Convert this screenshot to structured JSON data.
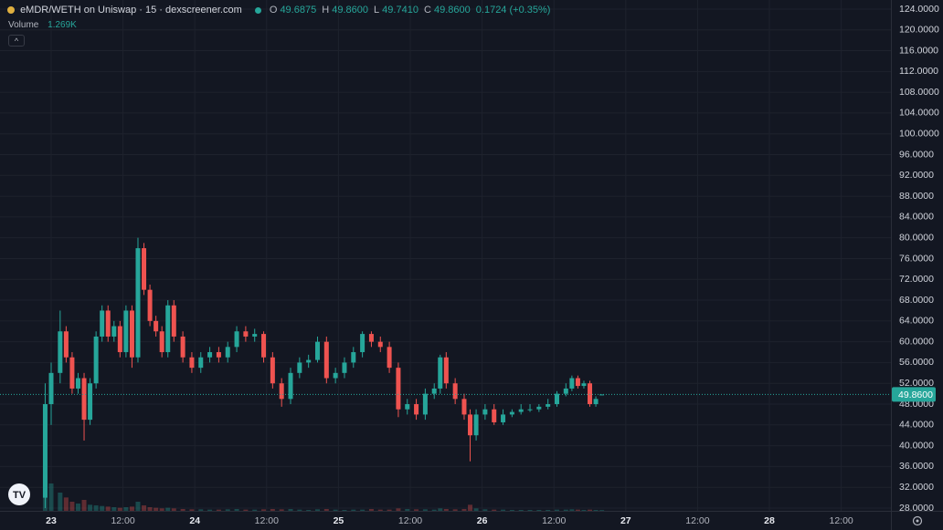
{
  "chart_data": {
    "type": "candlestick",
    "title": "eMDR/WETH on Uniswap · 15 · dexscreener.com",
    "ohlc_labels": [
      "O",
      "H",
      "L",
      "C"
    ],
    "ohlc_values": [
      "49.6875",
      "49.8600",
      "49.7410",
      "49.8600"
    ],
    "change": "0.1724 (+0.35%)",
    "up_color": "#26a69a",
    "down_color": "#ef5350",
    "grid": true,
    "xlim": [
      -8.55,
      140.3
    ],
    "xticks": [
      {
        "value": 0,
        "label": "23"
      },
      {
        "value": 12,
        "label": "12:00"
      },
      {
        "value": 24,
        "label": "24"
      },
      {
        "value": 36,
        "label": "12:00"
      },
      {
        "value": 48,
        "label": "25"
      },
      {
        "value": 60,
        "label": "12:00"
      },
      {
        "value": 72,
        "label": "26"
      },
      {
        "value": 84,
        "label": "12:00"
      },
      {
        "value": 96,
        "label": "27"
      },
      {
        "value": 108,
        "label": "12:00"
      },
      {
        "value": 120,
        "label": "28"
      },
      {
        "value": 132,
        "label": "12:00"
      }
    ],
    "ylim": [
      27.47,
      125.75
    ],
    "yticks": [
      {
        "value": 28,
        "label": "28.0000"
      },
      {
        "value": 32,
        "label": "32.0000"
      },
      {
        "value": 36,
        "label": "36.0000"
      },
      {
        "value": 40,
        "label": "40.0000"
      },
      {
        "value": 44,
        "label": "44.0000"
      },
      {
        "value": 48,
        "label": "48.0000"
      },
      {
        "value": 52,
        "label": "52.0000"
      },
      {
        "value": 56,
        "label": "56.0000"
      },
      {
        "value": 60,
        "label": "60.0000"
      },
      {
        "value": 64,
        "label": "64.0000"
      },
      {
        "value": 68,
        "label": "68.0000"
      },
      {
        "value": 72,
        "label": "72.0000"
      },
      {
        "value": 76,
        "label": "76.0000"
      },
      {
        "value": 80,
        "label": "80.0000"
      },
      {
        "value": 84,
        "label": "84.0000"
      },
      {
        "value": 88,
        "label": "88.0000"
      },
      {
        "value": 92,
        "label": "92.0000"
      },
      {
        "value": 96,
        "label": "96.0000"
      },
      {
        "value": 100,
        "label": "100.0000"
      },
      {
        "value": 104,
        "label": "104.0000"
      },
      {
        "value": 108,
        "label": "108.0000"
      },
      {
        "value": 112,
        "label": "112.0000"
      },
      {
        "value": 116,
        "label": "116.0000"
      },
      {
        "value": 120,
        "label": "120.0000"
      },
      {
        "value": 124,
        "label": "124.0000"
      }
    ],
    "last_price": {
      "value": 49.86,
      "label": "49.8600"
    },
    "x": [
      -1,
      0,
      1.5,
      2.5,
      3.5,
      4.5,
      5.5,
      6.5,
      7.5,
      8.5,
      9.5,
      10.5,
      11.5,
      12.5,
      13.5,
      14.5,
      15.5,
      16.5,
      17.5,
      18.5,
      19.5,
      20.5,
      22,
      23.5,
      25,
      26.5,
      28,
      29.5,
      31,
      32.5,
      34,
      35.5,
      37,
      38.5,
      40,
      41.5,
      43,
      44.5,
      46,
      47.5,
      49,
      50.5,
      52,
      53.5,
      55,
      56.5,
      58,
      59.5,
      61,
      62.5,
      64,
      65,
      66,
      67.5,
      69,
      70,
      71,
      72.5,
      74,
      75.5,
      77,
      78.5,
      80,
      81.5,
      83,
      84.5,
      86,
      87,
      88,
      89,
      90,
      91,
      92
    ],
    "open": [
      30,
      48,
      54,
      62,
      57,
      51,
      53,
      45,
      52,
      61,
      66,
      61,
      63,
      58,
      66,
      57,
      78,
      70,
      64,
      62,
      58,
      67,
      61,
      57,
      55,
      57,
      58,
      57,
      59,
      62,
      61,
      61.5,
      57,
      52,
      49,
      54,
      56,
      56.5,
      60,
      53,
      54,
      56,
      58,
      61.5,
      60,
      59,
      55,
      47,
      48,
      46,
      50,
      51,
      57,
      52,
      49,
      46,
      42,
      46,
      47,
      44.5,
      46,
      46.5,
      47,
      47,
      47.5,
      48,
      50,
      51,
      53,
      51.5,
      52,
      48,
      49.6875
    ],
    "high": [
      52,
      56,
      66,
      63,
      58,
      54,
      54,
      53,
      62,
      67,
      67,
      64,
      64,
      67,
      67,
      80,
      79,
      71,
      65,
      63,
      68,
      68,
      62,
      58,
      58,
      59,
      59,
      60,
      63,
      63,
      62.5,
      62,
      58,
      53,
      55,
      57,
      57.5,
      61,
      61,
      55,
      57,
      59,
      62,
      62,
      61,
      60,
      56,
      49,
      49,
      51,
      52,
      57.5,
      58,
      53,
      50,
      47,
      47,
      48,
      48,
      47,
      47,
      48,
      48,
      48,
      49,
      50.5,
      52,
      53.5,
      53.5,
      52.5,
      52.5,
      49.5,
      49.86
    ],
    "low": [
      28,
      44,
      52,
      56,
      50,
      50,
      41,
      44,
      51,
      60,
      60,
      60,
      57,
      57,
      55,
      56,
      69,
      63,
      61,
      57,
      57,
      60,
      56,
      54,
      54,
      56,
      56,
      56,
      58,
      60,
      60,
      56,
      51,
      47.5,
      48,
      53,
      55,
      56,
      52,
      52,
      53,
      55,
      57,
      59,
      58,
      54,
      45.5,
      46,
      45,
      45,
      49,
      50,
      51,
      48,
      45,
      37,
      41,
      45,
      44,
      44,
      45.5,
      46,
      46.5,
      46.5,
      47,
      47.5,
      49.5,
      50.5,
      51,
      51,
      47.5,
      47.5,
      49.741
    ],
    "close": [
      48,
      54,
      62,
      57,
      51,
      53,
      45,
      52,
      61,
      66,
      61,
      63,
      58,
      66,
      57,
      78,
      70,
      64,
      62,
      58,
      67,
      61,
      57,
      55,
      57,
      58,
      57,
      59,
      62,
      61,
      61.5,
      57,
      52,
      49,
      54,
      56,
      56.5,
      60,
      53,
      54,
      56,
      58,
      61.5,
      60,
      59,
      55,
      47,
      48,
      46,
      50,
      51,
      57,
      52,
      49,
      46,
      42,
      46,
      47,
      44.5,
      46,
      46.5,
      47,
      47,
      47.5,
      48,
      50,
      51,
      53,
      51.5,
      52,
      48,
      49,
      49.86
    ],
    "volume": {
      "name": "Volume",
      "current_label": "1.269K",
      "values": [
        60000,
        45000,
        30000,
        22000,
        15000,
        12000,
        18000,
        10000,
        9000,
        8000,
        7000,
        6000,
        5000,
        6000,
        7000,
        15000,
        9000,
        6000,
        5000,
        4000,
        5000,
        4000,
        3000,
        2500,
        2500,
        2000,
        2000,
        2500,
        3000,
        2000,
        2000,
        2500,
        3000,
        2500,
        3000,
        2000,
        1500,
        2500,
        3000,
        2000,
        1500,
        2000,
        2000,
        3000,
        2000,
        2000,
        4000,
        3000,
        2500,
        2500,
        2000,
        4000,
        3000,
        2500,
        3000,
        10000,
        4000,
        2500,
        2000,
        2000,
        1500,
        1500,
        1500,
        1500,
        1500,
        2000,
        2000,
        2500,
        2000,
        1500,
        2000,
        1500,
        1269
      ]
    }
  }
}
